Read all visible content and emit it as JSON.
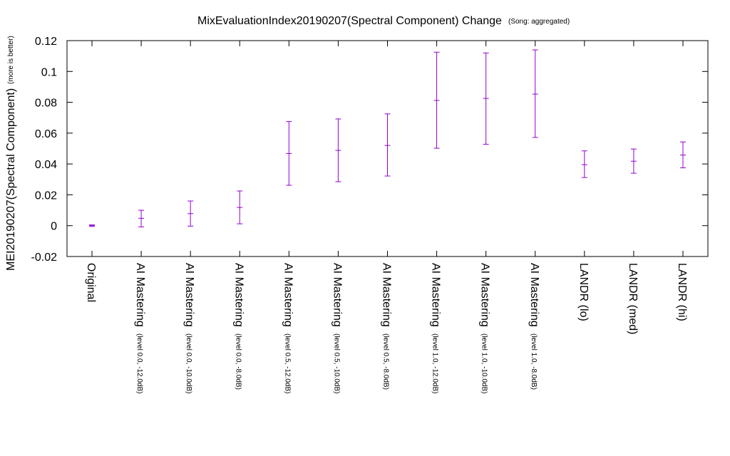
{
  "chart_data": {
    "type": "errorbar",
    "title": "MixEvaluationIndex20190207(Spectral Component) Change",
    "title_note": "(Song: aggregated)",
    "ylabel": "MEI20190207(Spectral Component)",
    "ylabel_note": "(more is better)",
    "xlabel": "",
    "ylim": [
      -0.02,
      0.12
    ],
    "yticks": [
      -0.02,
      0,
      0.02,
      0.04,
      0.06,
      0.08,
      0.1,
      0.12
    ],
    "ytick_labels": [
      "-0.02",
      "0",
      "0.02",
      "0.04",
      "0.06",
      "0.08",
      "0.1",
      "0.12"
    ],
    "grid": false,
    "legend": "none",
    "color": "#9400d3",
    "categories": [
      {
        "main": "Original",
        "sub": ""
      },
      {
        "main": "AI Mastering",
        "sub": "(level 0.0, -12.0dB)"
      },
      {
        "main": "AI Mastering",
        "sub": "(level 0.0, -10.0dB)"
      },
      {
        "main": "AI Mastering",
        "sub": "(level 0.0, -8.0dB)"
      },
      {
        "main": "AI Mastering",
        "sub": "(level 0.5, -12.0dB)"
      },
      {
        "main": "AI Mastering",
        "sub": "(level 0.5, -10.0dB)"
      },
      {
        "main": "AI Mastering",
        "sub": "(level 0.5, -8.0dB)"
      },
      {
        "main": "AI Mastering",
        "sub": "(level 1.0, -12.0dB)"
      },
      {
        "main": "AI Mastering",
        "sub": "(level 1.0, -10.0dB)"
      },
      {
        "main": "AI Mastering",
        "sub": "(level 1.0, -8.0dB)"
      },
      {
        "main": "LANDR (lo)",
        "sub": ""
      },
      {
        "main": "LANDR (med)",
        "sub": ""
      },
      {
        "main": "LANDR (hi)",
        "sub": ""
      }
    ],
    "values": [
      0.0,
      0.0048,
      0.0078,
      0.0118,
      0.0468,
      0.0488,
      0.052,
      0.0812,
      0.0825,
      0.0853,
      0.0395,
      0.0418,
      0.0458
    ],
    "lower": [
      -0.0005,
      -0.0008,
      -0.0003,
      0.0012,
      0.0262,
      0.0285,
      0.0322,
      0.0502,
      0.0528,
      0.0572,
      0.0312,
      0.034,
      0.0375
    ],
    "upper": [
      0.0005,
      0.01,
      0.016,
      0.0225,
      0.0675,
      0.0692,
      0.0725,
      0.1125,
      0.112,
      0.114,
      0.0485,
      0.0497,
      0.0543
    ]
  }
}
